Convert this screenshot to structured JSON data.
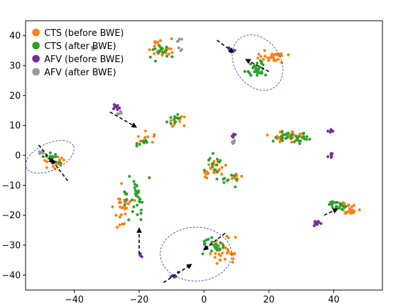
{
  "chart_data": {
    "type": "scatter",
    "title": "",
    "xlabel": "",
    "ylabel": "",
    "xlim": [
      -55,
      55
    ],
    "ylim": [
      -45,
      45
    ],
    "x_ticks": [
      -40,
      -20,
      0,
      20,
      40
    ],
    "y_ticks": [
      -40,
      -30,
      -20,
      -10,
      0,
      10,
      20,
      30,
      40
    ],
    "x_tick_labels": [
      "−40",
      "−20",
      "0",
      "20",
      "40"
    ],
    "y_tick_labels": [
      "−40",
      "−30",
      "−20",
      "−10",
      "0",
      "10",
      "20",
      "30",
      "40"
    ],
    "grid": false,
    "legend": {
      "position": "top-left",
      "entries": [
        {
          "label": "CTS (before BWE)",
          "color": "#ff7f0e"
        },
        {
          "label": "CTS (after BWE)",
          "color": "#2ca02c"
        },
        {
          "label": "AFV (before BWE)",
          "color": "#7030a0"
        },
        {
          "label": "AFV (after BWE)",
          "color": "#999999"
        }
      ]
    },
    "series": [
      {
        "name": "CTS (before BWE)",
        "color": "#ff7f0e",
        "clusters": [
          {
            "center": [
              -13.5,
              35.5
            ],
            "spread": [
              6.0,
              4.5
            ],
            "n": 22
          },
          {
            "center": [
              21.5,
              33.0
            ],
            "spread": [
              6.5,
              3.5
            ],
            "n": 34
          },
          {
            "center": [
              -18.0,
              6.5
            ],
            "spread": [
              4.0,
              3.0
            ],
            "n": 10
          },
          {
            "center": [
              -8.0,
              12.0
            ],
            "spread": [
              4.5,
              3.0
            ],
            "n": 10
          },
          {
            "center": [
              25.0,
              6.0
            ],
            "spread": [
              8.0,
              3.5
            ],
            "n": 26
          },
          {
            "center": [
              -47.0,
              -2.5
            ],
            "spread": [
              6.0,
              4.0
            ],
            "n": 22
          },
          {
            "center": [
              3.0,
              -5.0
            ],
            "spread": [
              5.0,
              4.5
            ],
            "n": 22
          },
          {
            "center": [
              10.0,
              -7.5
            ],
            "spread": [
              3.0,
              3.0
            ],
            "n": 10
          },
          {
            "center": [
              -25.0,
              -17.0
            ],
            "spread": [
              4.5,
              9.0
            ],
            "n": 30
          },
          {
            "center": [
              44.5,
              -18.0
            ],
            "spread": [
              4.5,
              3.5
            ],
            "n": 26
          },
          {
            "center": [
              6.0,
              -32.0
            ],
            "spread": [
              6.5,
              7.0
            ],
            "n": 30
          }
        ]
      },
      {
        "name": "CTS (after BWE)",
        "color": "#2ca02c",
        "clusters": [
          {
            "center": [
              -13.5,
              35.0
            ],
            "spread": [
              6.0,
              4.5
            ],
            "n": 18
          },
          {
            "center": [
              16.0,
              29.0
            ],
            "spread": [
              4.5,
              4.5
            ],
            "n": 30
          },
          {
            "center": [
              -20.0,
              5.0
            ],
            "spread": [
              3.0,
              2.5
            ],
            "n": 8
          },
          {
            "center": [
              -9.0,
              12.0
            ],
            "spread": [
              4.0,
              3.0
            ],
            "n": 12
          },
          {
            "center": [
              27.5,
              6.5
            ],
            "spread": [
              8.0,
              3.5
            ],
            "n": 34
          },
          {
            "center": [
              -47.0,
              -1.0
            ],
            "spread": [
              5.0,
              3.5
            ],
            "n": 14
          },
          {
            "center": [
              3.0,
              -3.0
            ],
            "spread": [
              4.5,
              4.5
            ],
            "n": 14
          },
          {
            "center": [
              7.0,
              -8.0
            ],
            "spread": [
              4.0,
              3.5
            ],
            "n": 10
          },
          {
            "center": [
              -21.0,
              -14.5
            ],
            "spread": [
              4.5,
              9.5
            ],
            "n": 36
          },
          {
            "center": [
              41.0,
              -16.5
            ],
            "spread": [
              3.5,
              2.5
            ],
            "n": 20
          },
          {
            "center": [
              2.5,
              -30.0
            ],
            "spread": [
              5.0,
              4.5
            ],
            "n": 24
          }
        ]
      },
      {
        "name": "AFV (before BWE)",
        "color": "#7030a0",
        "clusters": [
          {
            "center": [
              8.0,
              35.5
            ],
            "spread": [
              2.0,
              1.5
            ],
            "n": 8
          },
          {
            "center": [
              -27.0,
              16.0
            ],
            "spread": [
              2.0,
              1.5
            ],
            "n": 8
          },
          {
            "center": [
              9.0,
              6.5
            ],
            "spread": [
              1.2,
              1.0
            ],
            "n": 5
          },
          {
            "center": [
              39.0,
              8.0
            ],
            "spread": [
              1.5,
              1.5
            ],
            "n": 6
          },
          {
            "center": [
              39.0,
              0.0
            ],
            "spread": [
              1.5,
              1.5
            ],
            "n": 6
          },
          {
            "center": [
              35.0,
              -22.5
            ],
            "spread": [
              2.0,
              1.5
            ],
            "n": 10
          },
          {
            "center": [
              -19.0,
              -33.0
            ],
            "spread": [
              1.2,
              1.0
            ],
            "n": 5
          },
          {
            "center": [
              -9.0,
              -40.0
            ],
            "spread": [
              2.0,
              1.5
            ],
            "n": 8
          }
        ]
      },
      {
        "name": "AFV (after BWE)",
        "color": "#999999",
        "clusters": [
          {
            "center": [
              -7.5,
              38.5
            ],
            "spread": [
              1.0,
              1.0
            ],
            "n": 4
          },
          {
            "center": [
              -34.0,
              36.0
            ],
            "spread": [
              1.0,
              1.0
            ],
            "n": 4
          },
          {
            "center": [
              -7.5,
              35.5
            ],
            "spread": [
              1.0,
              1.0
            ],
            "n": 3
          },
          {
            "center": [
              -26.0,
              14.0
            ],
            "spread": [
              1.5,
              1.0
            ],
            "n": 6
          },
          {
            "center": [
              9.0,
              4.5
            ],
            "spread": [
              1.2,
              1.0
            ],
            "n": 5
          },
          {
            "center": [
              -50.0,
              1.0
            ],
            "spread": [
              1.5,
              1.0
            ],
            "n": 6
          }
        ]
      }
    ],
    "annotations": {
      "ellipses": [
        {
          "center": [
            16.5,
            31.0
          ],
          "rx": 7.0,
          "ry": 10.0,
          "rotation": -35
        },
        {
          "center": [
            -47.5,
            -0.5
          ],
          "rx": 8.0,
          "ry": 4.5,
          "rotation": -25
        },
        {
          "center": [
            -2.5,
            -33.0
          ],
          "rx": 11.0,
          "ry": 9.0,
          "rotation": 0
        }
      ],
      "arrows": [
        {
          "from": [
            4.0,
            38.5
          ],
          "to": [
            9.0,
            34.5
          ]
        },
        {
          "from": [
            20.0,
            28.0
          ],
          "to": [
            13.0,
            32.0
          ]
        },
        {
          "from": [
            -29.0,
            14.5
          ],
          "to": [
            -21.0,
            9.5
          ]
        },
        {
          "from": [
            -51.0,
            3.5
          ],
          "to": [
            -46.5,
            -2.5
          ]
        },
        {
          "from": [
            -42.0,
            -8.5
          ],
          "to": [
            -47.0,
            -1.5
          ]
        },
        {
          "from": [
            -20.0,
            -33.0
          ],
          "to": [
            -20.0,
            -24.5
          ]
        },
        {
          "from": [
            -12.5,
            -42.5
          ],
          "to": [
            -4.0,
            -36.5
          ]
        },
        {
          "from": [
            6.5,
            -26.0
          ],
          "to": [
            0.0,
            -31.5
          ]
        },
        {
          "from": [
            37.0,
            -20.0
          ],
          "to": [
            41.0,
            -18.0
          ]
        }
      ]
    }
  }
}
